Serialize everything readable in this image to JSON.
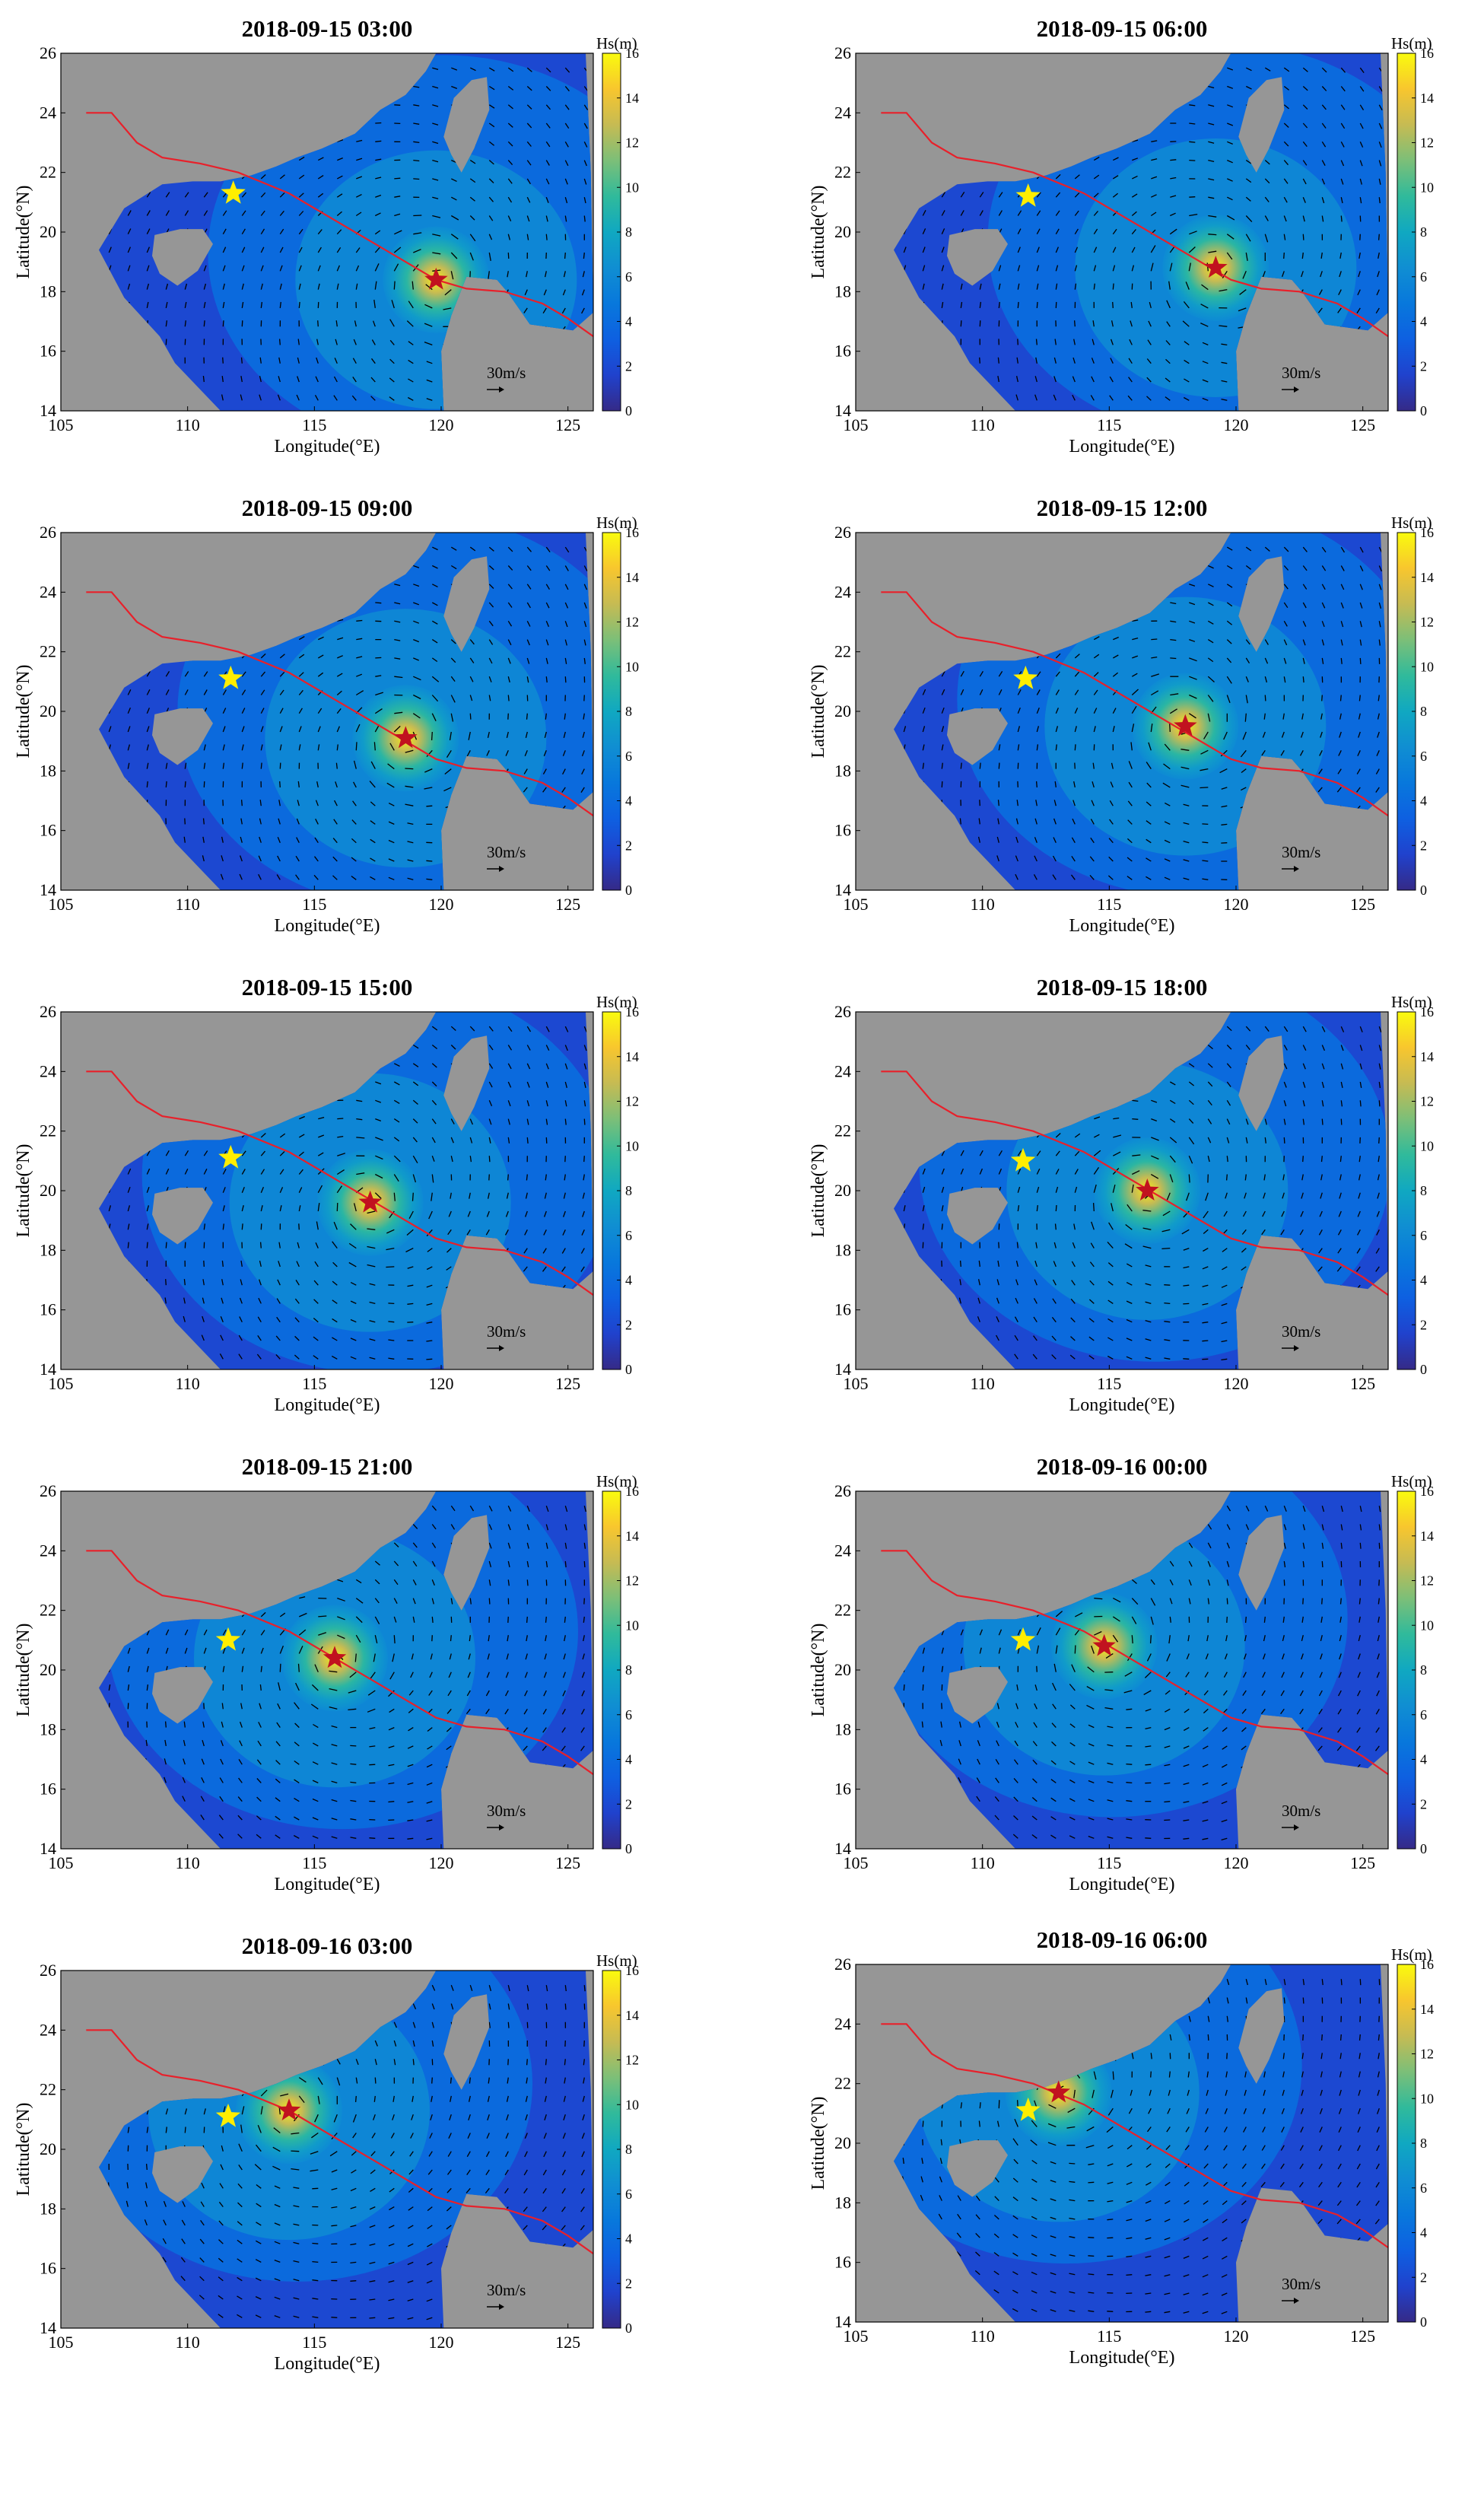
{
  "figure": {
    "xlabel": "Longitude(°E)",
    "ylabel": "Latitude(°N)",
    "colorbar_label": "Hs(m)",
    "ref_arrow_label": "30m/s",
    "colors": {
      "land": "#969696",
      "track": "#e8202a",
      "storm_star": "#c1121f",
      "station_star": "#ffee00",
      "arrow": "#000000"
    },
    "colormap": "parula"
  },
  "chart_data": [
    {
      "type": "heatmap",
      "title": "2018-09-15 03:00",
      "xlim": [
        105,
        126
      ],
      "ylim": [
        14,
        26
      ],
      "xticks": [
        105,
        110,
        115,
        120,
        125
      ],
      "yticks": [
        14,
        16,
        18,
        20,
        22,
        24,
        26
      ],
      "colorbar": {
        "min": 0,
        "max": 16,
        "ticks": [
          0,
          2,
          4,
          6,
          8,
          10,
          12,
          14,
          16
        ]
      },
      "typhoon_center": [
        119.8,
        18.4
      ],
      "station": [
        111.8,
        21.3
      ],
      "track": [
        [
          106,
          24
        ],
        [
          107,
          24
        ],
        [
          108,
          23
        ],
        [
          109,
          22.5
        ],
        [
          110.5,
          22.3
        ],
        [
          112,
          22
        ],
        [
          114,
          21.3
        ],
        [
          116,
          20.3
        ],
        [
          118,
          19.3
        ],
        [
          119.8,
          18.4
        ],
        [
          121,
          18.1
        ],
        [
          122.5,
          18
        ],
        [
          124,
          17.6
        ],
        [
          125,
          17.1
        ],
        [
          126,
          16.5
        ]
      ],
      "ref_arrow": "30m/s"
    },
    {
      "type": "heatmap",
      "title": "2018-09-15 06:00",
      "xlim": [
        105,
        126
      ],
      "ylim": [
        14,
        26
      ],
      "xticks": [
        105,
        110,
        115,
        120,
        125
      ],
      "yticks": [
        14,
        16,
        18,
        20,
        22,
        24,
        26
      ],
      "colorbar": {
        "min": 0,
        "max": 16,
        "ticks": [
          0,
          2,
          4,
          6,
          8,
          10,
          12,
          14,
          16
        ]
      },
      "typhoon_center": [
        119.2,
        18.8
      ],
      "station": [
        111.8,
        21.2
      ],
      "track": [
        [
          106,
          24
        ],
        [
          107,
          24
        ],
        [
          108,
          23
        ],
        [
          109,
          22.5
        ],
        [
          110.5,
          22.3
        ],
        [
          112,
          22
        ],
        [
          114,
          21.3
        ],
        [
          116,
          20.3
        ],
        [
          118,
          19.3
        ],
        [
          119.8,
          18.4
        ],
        [
          121,
          18.1
        ],
        [
          122.5,
          18
        ],
        [
          124,
          17.6
        ],
        [
          125,
          17.1
        ],
        [
          126,
          16.5
        ]
      ],
      "ref_arrow": "30m/s"
    },
    {
      "type": "heatmap",
      "title": "2018-09-15 09:00",
      "xlim": [
        105,
        126
      ],
      "ylim": [
        14,
        26
      ],
      "xticks": [
        105,
        110,
        115,
        120,
        125
      ],
      "yticks": [
        14,
        16,
        18,
        20,
        22,
        24,
        26
      ],
      "colorbar": {
        "min": 0,
        "max": 16,
        "ticks": [
          0,
          2,
          4,
          6,
          8,
          10,
          12,
          14,
          16
        ]
      },
      "typhoon_center": [
        118.6,
        19.1
      ],
      "station": [
        111.7,
        21.1
      ],
      "track": [
        [
          106,
          24
        ],
        [
          107,
          24
        ],
        [
          108,
          23
        ],
        [
          109,
          22.5
        ],
        [
          110.5,
          22.3
        ],
        [
          112,
          22
        ],
        [
          114,
          21.3
        ],
        [
          116,
          20.3
        ],
        [
          118,
          19.3
        ],
        [
          119.8,
          18.4
        ],
        [
          121,
          18.1
        ],
        [
          122.5,
          18
        ],
        [
          124,
          17.6
        ],
        [
          125,
          17.1
        ],
        [
          126,
          16.5
        ]
      ],
      "ref_arrow": "30m/s"
    },
    {
      "type": "heatmap",
      "title": "2018-09-15 12:00",
      "xlim": [
        105,
        126
      ],
      "ylim": [
        14,
        26
      ],
      "xticks": [
        105,
        110,
        115,
        120,
        125
      ],
      "yticks": [
        14,
        16,
        18,
        20,
        22,
        24,
        26
      ],
      "colorbar": {
        "min": 0,
        "max": 16,
        "ticks": [
          0,
          2,
          4,
          6,
          8,
          10,
          12,
          14,
          16
        ]
      },
      "typhoon_center": [
        118.0,
        19.5
      ],
      "station": [
        111.7,
        21.1
      ],
      "track": [
        [
          106,
          24
        ],
        [
          107,
          24
        ],
        [
          108,
          23
        ],
        [
          109,
          22.5
        ],
        [
          110.5,
          22.3
        ],
        [
          112,
          22
        ],
        [
          114,
          21.3
        ],
        [
          116,
          20.3
        ],
        [
          118,
          19.3
        ],
        [
          119.8,
          18.4
        ],
        [
          121,
          18.1
        ],
        [
          122.5,
          18
        ],
        [
          124,
          17.6
        ],
        [
          125,
          17.1
        ],
        [
          126,
          16.5
        ]
      ],
      "ref_arrow": "30m/s"
    },
    {
      "type": "heatmap",
      "title": "2018-09-15 15:00",
      "xlim": [
        105,
        126
      ],
      "ylim": [
        14,
        26
      ],
      "xticks": [
        105,
        110,
        115,
        120,
        125
      ],
      "yticks": [
        14,
        16,
        18,
        20,
        22,
        24,
        26
      ],
      "colorbar": {
        "min": 0,
        "max": 16,
        "ticks": [
          0,
          2,
          4,
          6,
          8,
          10,
          12,
          14,
          16
        ]
      },
      "typhoon_center": [
        117.2,
        19.6
      ],
      "station": [
        111.7,
        21.1
      ],
      "track": [
        [
          106,
          24
        ],
        [
          107,
          24
        ],
        [
          108,
          23
        ],
        [
          109,
          22.5
        ],
        [
          110.5,
          22.3
        ],
        [
          112,
          22
        ],
        [
          114,
          21.3
        ],
        [
          116,
          20.3
        ],
        [
          118,
          19.3
        ],
        [
          119.8,
          18.4
        ],
        [
          121,
          18.1
        ],
        [
          122.5,
          18
        ],
        [
          124,
          17.6
        ],
        [
          125,
          17.1
        ],
        [
          126,
          16.5
        ]
      ],
      "ref_arrow": "30m/s"
    },
    {
      "type": "heatmap",
      "title": "2018-09-15 18:00",
      "xlim": [
        105,
        126
      ],
      "ylim": [
        14,
        26
      ],
      "xticks": [
        105,
        110,
        115,
        120,
        125
      ],
      "yticks": [
        14,
        16,
        18,
        20,
        22,
        24,
        26
      ],
      "colorbar": {
        "min": 0,
        "max": 16,
        "ticks": [
          0,
          2,
          4,
          6,
          8,
          10,
          12,
          14,
          16
        ]
      },
      "typhoon_center": [
        116.5,
        20.0
      ],
      "station": [
        111.6,
        21.0
      ],
      "track": [
        [
          106,
          24
        ],
        [
          107,
          24
        ],
        [
          108,
          23
        ],
        [
          109,
          22.5
        ],
        [
          110.5,
          22.3
        ],
        [
          112,
          22
        ],
        [
          114,
          21.3
        ],
        [
          116,
          20.3
        ],
        [
          118,
          19.3
        ],
        [
          119.8,
          18.4
        ],
        [
          121,
          18.1
        ],
        [
          122.5,
          18
        ],
        [
          124,
          17.6
        ],
        [
          125,
          17.1
        ],
        [
          126,
          16.5
        ]
      ],
      "ref_arrow": "30m/s"
    },
    {
      "type": "heatmap",
      "title": "2018-09-15 21:00",
      "xlim": [
        105,
        126
      ],
      "ylim": [
        14,
        26
      ],
      "xticks": [
        105,
        110,
        115,
        120,
        125
      ],
      "yticks": [
        14,
        16,
        18,
        20,
        22,
        24,
        26
      ],
      "colorbar": {
        "min": 0,
        "max": 16,
        "ticks": [
          0,
          2,
          4,
          6,
          8,
          10,
          12,
          14,
          16
        ]
      },
      "typhoon_center": [
        115.8,
        20.4
      ],
      "station": [
        111.6,
        21.0
      ],
      "track": [
        [
          106,
          24
        ],
        [
          107,
          24
        ],
        [
          108,
          23
        ],
        [
          109,
          22.5
        ],
        [
          110.5,
          22.3
        ],
        [
          112,
          22
        ],
        [
          114,
          21.3
        ],
        [
          116,
          20.3
        ],
        [
          118,
          19.3
        ],
        [
          119.8,
          18.4
        ],
        [
          121,
          18.1
        ],
        [
          122.5,
          18
        ],
        [
          124,
          17.6
        ],
        [
          125,
          17.1
        ],
        [
          126,
          16.5
        ]
      ],
      "ref_arrow": "30m/s"
    },
    {
      "type": "heatmap",
      "title": "2018-09-16 00:00",
      "xlim": [
        105,
        126
      ],
      "ylim": [
        14,
        26
      ],
      "xticks": [
        105,
        110,
        115,
        120,
        125
      ],
      "yticks": [
        14,
        16,
        18,
        20,
        22,
        24,
        26
      ],
      "colorbar": {
        "min": 0,
        "max": 16,
        "ticks": [
          0,
          2,
          4,
          6,
          8,
          10,
          12,
          14,
          16
        ]
      },
      "typhoon_center": [
        114.8,
        20.8
      ],
      "station": [
        111.6,
        21.0
      ],
      "track": [
        [
          106,
          24
        ],
        [
          107,
          24
        ],
        [
          108,
          23
        ],
        [
          109,
          22.5
        ],
        [
          110.5,
          22.3
        ],
        [
          112,
          22
        ],
        [
          114,
          21.3
        ],
        [
          116,
          20.3
        ],
        [
          118,
          19.3
        ],
        [
          119.8,
          18.4
        ],
        [
          121,
          18.1
        ],
        [
          122.5,
          18
        ],
        [
          124,
          17.6
        ],
        [
          125,
          17.1
        ],
        [
          126,
          16.5
        ]
      ],
      "ref_arrow": "30m/s"
    },
    {
      "type": "heatmap",
      "title": "2018-09-16 03:00",
      "xlim": [
        105,
        126
      ],
      "ylim": [
        14,
        26
      ],
      "xticks": [
        105,
        110,
        115,
        120,
        125
      ],
      "yticks": [
        14,
        16,
        18,
        20,
        22,
        24,
        26
      ],
      "colorbar": {
        "min": 0,
        "max": 16,
        "ticks": [
          0,
          2,
          4,
          6,
          8,
          10,
          12,
          14,
          16
        ]
      },
      "typhoon_center": [
        114.0,
        21.3
      ],
      "station": [
        111.6,
        21.1
      ],
      "track": [
        [
          106,
          24
        ],
        [
          107,
          24
        ],
        [
          108,
          23
        ],
        [
          109,
          22.5
        ],
        [
          110.5,
          22.3
        ],
        [
          112,
          22
        ],
        [
          114,
          21.3
        ],
        [
          116,
          20.3
        ],
        [
          118,
          19.3
        ],
        [
          119.8,
          18.4
        ],
        [
          121,
          18.1
        ],
        [
          122.5,
          18
        ],
        [
          124,
          17.6
        ],
        [
          125,
          17.1
        ],
        [
          126,
          16.5
        ]
      ],
      "ref_arrow": "30m/s"
    },
    {
      "type": "heatmap",
      "title": "2018-09-16 06:00",
      "xlim": [
        105,
        126
      ],
      "ylim": [
        14,
        26
      ],
      "xticks": [
        105,
        110,
        115,
        120,
        125
      ],
      "yticks": [
        14,
        16,
        18,
        20,
        22,
        24,
        26
      ],
      "colorbar": {
        "min": 0,
        "max": 16,
        "ticks": [
          0,
          2,
          4,
          6,
          8,
          10,
          12,
          14,
          16
        ]
      },
      "typhoon_center": [
        113.0,
        21.7
      ],
      "station": [
        111.8,
        21.1
      ],
      "track": [
        [
          106,
          24
        ],
        [
          107,
          24
        ],
        [
          108,
          23
        ],
        [
          109,
          22.5
        ],
        [
          110.5,
          22.3
        ],
        [
          112,
          22
        ],
        [
          114,
          21.3
        ],
        [
          116,
          20.3
        ],
        [
          118,
          19.3
        ],
        [
          119.8,
          18.4
        ],
        [
          121,
          18.1
        ],
        [
          122.5,
          18
        ],
        [
          124,
          17.6
        ],
        [
          125,
          17.1
        ],
        [
          126,
          16.5
        ]
      ],
      "ref_arrow": "30m/s"
    }
  ]
}
